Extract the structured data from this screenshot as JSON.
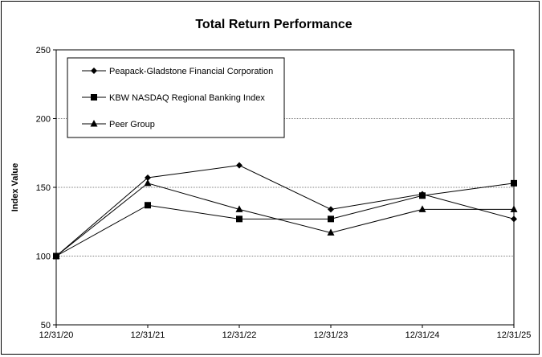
{
  "chart_data": {
    "type": "line",
    "title": "Total Return Performance",
    "xlabel": "",
    "ylabel": "Index Value",
    "categories": [
      "12/31/20",
      "12/31/21",
      "12/31/22",
      "12/31/23",
      "12/31/24",
      "12/31/25"
    ],
    "ylim": [
      50,
      250
    ],
    "yticks": [
      50,
      100,
      150,
      200,
      250
    ],
    "grid": "horizontal dashed",
    "legend_position": "top-left",
    "series": [
      {
        "name": "Peapack-Gladstone Financial Corporation",
        "marker": "diamond",
        "values": [
          100,
          157,
          166,
          134,
          145,
          127
        ]
      },
      {
        "name": "KBW NASDAQ Regional Banking Index",
        "marker": "square",
        "values": [
          100,
          137,
          127,
          127,
          144,
          153
        ]
      },
      {
        "name": "Peer Group",
        "marker": "triangle",
        "values": [
          100,
          153,
          134,
          117,
          134,
          134
        ]
      }
    ],
    "colors": {
      "line": "#000000",
      "grid": "#808080"
    }
  }
}
